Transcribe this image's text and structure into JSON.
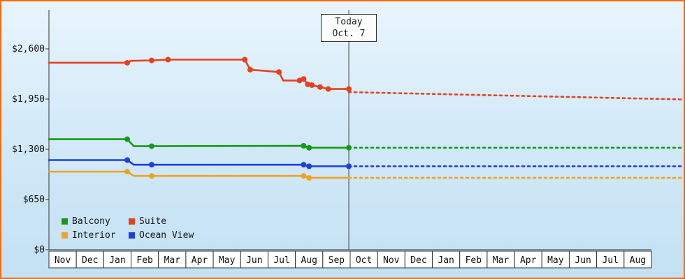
{
  "frame": {
    "border_color": "#ff6a00"
  },
  "chart_data": {
    "type": "line",
    "title": "",
    "currency": "USD",
    "grid": false,
    "legend_position": "bottom-left",
    "y_axis": {
      "ticks": [
        {
          "label": "$2,600",
          "value": 2600
        },
        {
          "label": "$1,950",
          "value": 1950
        },
        {
          "label": "$1,300",
          "value": 1300
        },
        {
          "label": "$650",
          "value": 650
        },
        {
          "label": "$0",
          "value": 0
        }
      ],
      "range": [
        0,
        2600
      ]
    },
    "x_axis": {
      "months": [
        "Nov",
        "Dec",
        "Jan",
        "Feb",
        "Mar",
        "Apr",
        "May",
        "Jun",
        "Jul",
        "Aug",
        "Sep",
        "Oct",
        "Nov",
        "Dec",
        "Jan",
        "Feb",
        "Mar",
        "Apr",
        "May",
        "Jun",
        "Jul",
        "Aug"
      ]
    },
    "today": {
      "line1": "Today",
      "line2": "Oct. 7",
      "month_index": 10.95
    },
    "forecast_end_index": 23.1,
    "series": [
      {
        "name": "Suite",
        "color": "#e8401e",
        "solid": [
          [
            0,
            2420
          ],
          [
            2.86,
            2420
          ],
          [
            3.0,
            2445
          ],
          [
            3.75,
            2450
          ],
          [
            4.35,
            2460
          ],
          [
            7.15,
            2460
          ],
          [
            7.35,
            2330
          ],
          [
            8.4,
            2300
          ],
          [
            8.55,
            2190
          ],
          [
            9.15,
            2190
          ],
          [
            9.3,
            2210
          ],
          [
            9.45,
            2140
          ],
          [
            9.6,
            2130
          ],
          [
            9.9,
            2105
          ],
          [
            10.2,
            2080
          ],
          [
            10.95,
            2080
          ]
        ],
        "markers": [
          [
            2.86,
            2420
          ],
          [
            3.75,
            2450
          ],
          [
            4.35,
            2460
          ],
          [
            7.15,
            2460
          ],
          [
            7.35,
            2330
          ],
          [
            8.4,
            2300
          ],
          [
            9.15,
            2190
          ],
          [
            9.3,
            2210
          ],
          [
            9.45,
            2140
          ],
          [
            9.6,
            2130
          ],
          [
            9.9,
            2105
          ],
          [
            10.2,
            2080
          ],
          [
            10.95,
            2080
          ]
        ],
        "dashed": [
          [
            10.95,
            2040
          ],
          [
            23.1,
            1945
          ]
        ]
      },
      {
        "name": "Balcony",
        "color": "#169a16",
        "solid": [
          [
            0,
            1430
          ],
          [
            2.86,
            1430
          ],
          [
            3.1,
            1340
          ],
          [
            3.75,
            1340
          ],
          [
            9.3,
            1345
          ],
          [
            9.5,
            1320
          ],
          [
            10.95,
            1320
          ]
        ],
        "markers": [
          [
            2.86,
            1430
          ],
          [
            3.75,
            1340
          ],
          [
            9.3,
            1345
          ],
          [
            9.5,
            1320
          ],
          [
            10.95,
            1320
          ]
        ],
        "dashed": [
          [
            10.95,
            1320
          ],
          [
            23.1,
            1320
          ]
        ]
      },
      {
        "name": "Ocean View",
        "color": "#1b3fe0",
        "solid": [
          [
            0,
            1160
          ],
          [
            2.86,
            1160
          ],
          [
            3.1,
            1100
          ],
          [
            3.75,
            1100
          ],
          [
            9.3,
            1100
          ],
          [
            9.5,
            1080
          ],
          [
            10.95,
            1080
          ]
        ],
        "markers": [
          [
            2.86,
            1160
          ],
          [
            3.75,
            1100
          ],
          [
            9.3,
            1100
          ],
          [
            9.5,
            1080
          ],
          [
            10.95,
            1080
          ]
        ],
        "dashed": [
          [
            10.95,
            1080
          ],
          [
            23.1,
            1080
          ]
        ]
      },
      {
        "name": "Interior",
        "color": "#efa322",
        "solid": [
          [
            0,
            1010
          ],
          [
            2.86,
            1010
          ],
          [
            3.1,
            955
          ],
          [
            3.75,
            955
          ],
          [
            9.3,
            955
          ],
          [
            9.5,
            930
          ],
          [
            10.95,
            930
          ]
        ],
        "markers": [
          [
            2.86,
            1010
          ],
          [
            3.75,
            955
          ],
          [
            9.3,
            955
          ],
          [
            9.5,
            930
          ]
        ],
        "dashed": [
          [
            10.95,
            930
          ],
          [
            23.1,
            930
          ]
        ]
      }
    ],
    "legend": [
      {
        "label": "Balcony",
        "color": "#169a16"
      },
      {
        "label": "Suite",
        "color": "#e8401e"
      },
      {
        "label": "Interior",
        "color": "#efa322"
      },
      {
        "label": "Ocean View",
        "color": "#1b3fe0"
      }
    ]
  }
}
